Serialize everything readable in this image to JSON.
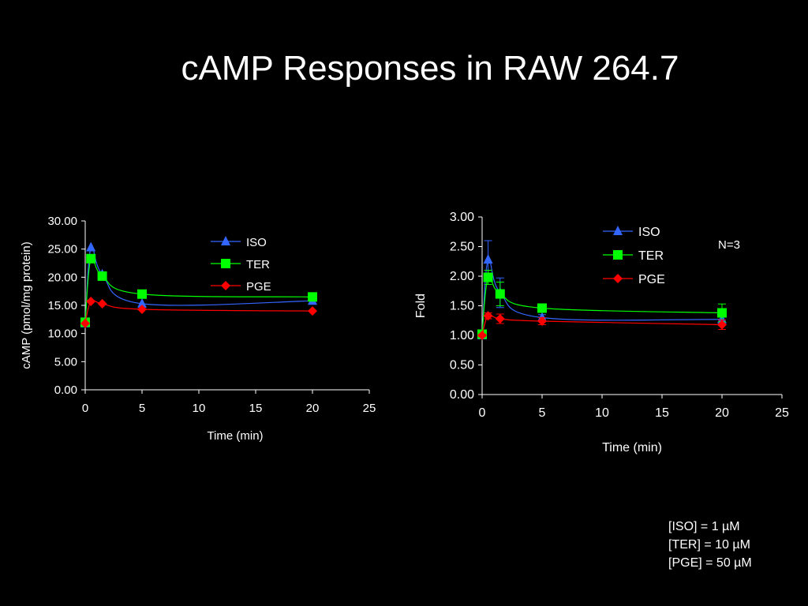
{
  "slide": {
    "title": "cAMP Responses in RAW 264.7",
    "note": "N=3",
    "concentrations": [
      "[ISO] = 1 µM",
      "[TER] = 10 µM",
      "[PGE] = 50 µM"
    ]
  },
  "chart_data": [
    {
      "type": "line",
      "title": "",
      "xlabel": "Time (min)",
      "ylabel": "cAMP (pmol/mg protein)",
      "xlim": [
        0,
        25
      ],
      "ylim": [
        0,
        30
      ],
      "xticks": [
        "0",
        "5",
        "10",
        "15",
        "20",
        "25"
      ],
      "yticks": [
        "0.00",
        "5.00",
        "10.00",
        "15.00",
        "20.00",
        "25.00",
        "30.00"
      ],
      "grid": false,
      "legend": "top-center",
      "series": [
        {
          "name": "ISO",
          "color": "#3366ff",
          "marker": "triangle",
          "x": [
            0,
            0.5,
            1.5,
            5,
            20
          ],
          "y": [
            11.8,
            25.3,
            20.5,
            15.3,
            15.8
          ]
        },
        {
          "name": "TER",
          "color": "#00ff00",
          "marker": "square",
          "x": [
            0,
            0.5,
            1.5,
            5,
            20
          ],
          "y": [
            12.0,
            23.3,
            20.2,
            17.0,
            16.5
          ]
        },
        {
          "name": "PGE",
          "color": "#ff0000",
          "marker": "diamond",
          "x": [
            0,
            0.5,
            1.5,
            5,
            20
          ],
          "y": [
            11.8,
            15.7,
            15.3,
            14.3,
            14.0
          ]
        }
      ]
    },
    {
      "type": "line",
      "title": "",
      "xlabel": "Time (min)",
      "ylabel": "Fold",
      "xlim": [
        0,
        25
      ],
      "ylim": [
        0,
        3
      ],
      "xticks": [
        "0",
        "5",
        "10",
        "15",
        "20",
        "25"
      ],
      "yticks": [
        "0.00",
        "0.50",
        "1.00",
        "1.50",
        "2.00",
        "2.50",
        "3.00"
      ],
      "grid": false,
      "legend": "top-center",
      "series": [
        {
          "name": "ISO",
          "color": "#3366ff",
          "marker": "triangle",
          "x": [
            0,
            0.5,
            1.5,
            5,
            20
          ],
          "y": [
            1.0,
            2.28,
            1.72,
            1.3,
            1.27
          ],
          "err": [
            0.03,
            0.32,
            0.25,
            0.05,
            0.06
          ]
        },
        {
          "name": "TER",
          "color": "#00ff00",
          "marker": "square",
          "x": [
            0,
            0.5,
            1.5,
            5,
            20
          ],
          "y": [
            1.02,
            1.98,
            1.7,
            1.46,
            1.38
          ],
          "err": [
            0.03,
            0.12,
            0.2,
            0.05,
            0.15
          ]
        },
        {
          "name": "PGE",
          "color": "#ff0000",
          "marker": "diamond",
          "x": [
            0,
            0.5,
            1.5,
            5,
            20
          ],
          "y": [
            1.0,
            1.33,
            1.28,
            1.24,
            1.18
          ],
          "err": [
            0.02,
            0.05,
            0.08,
            0.06,
            0.08
          ]
        }
      ]
    }
  ]
}
